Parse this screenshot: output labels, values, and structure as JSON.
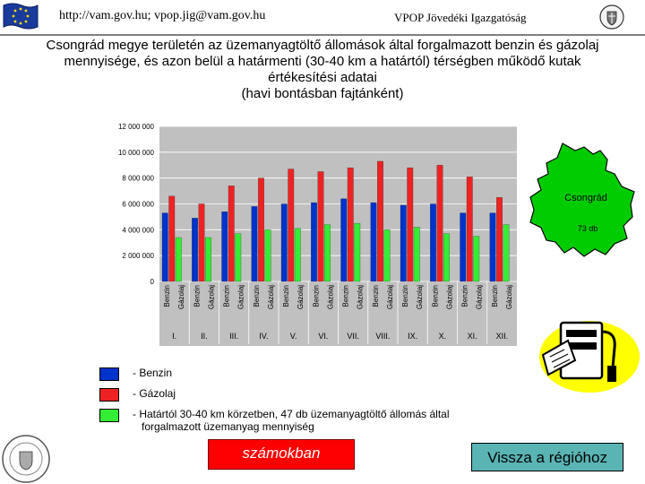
{
  "header": {
    "url_text": "http://vam.gov.hu; vpop.jig@vam.gov.hu",
    "org_text": "VPOP Jövedéki Igazgatóság",
    "left_logo_icon": "eu-flag-icon",
    "right_logo_icon": "crest-icon"
  },
  "title": {
    "line1": "Csongrád megye területén az üzemanyagtöltő állomások által forgalmazott benzin és gázolaj",
    "line2": "mennyisége, és azon belül a határmenti (30-40 km a határtól) térségben működő kutak",
    "line3": "értékesítési adatai",
    "line4": "(havi bontásban fajtánként)"
  },
  "map": {
    "region_name": "Csongrád",
    "station_count": "73 db",
    "fill_color": "#00cc00"
  },
  "chart_data": {
    "type": "bar",
    "months": [
      "I.",
      "II.",
      "III.",
      "IV.",
      "V.",
      "VI.",
      "VII.",
      "VIII.",
      "IX.",
      "X.",
      "XI.",
      "XII."
    ],
    "fuel_labels": [
      "Benzin",
      "Gázolaj"
    ],
    "ylim": [
      0,
      12000000
    ],
    "yticks": [
      "0",
      "2 000 000",
      "4 000 000",
      "6 000 000",
      "8 000 000",
      "10 000 000",
      "12 000 000"
    ],
    "series": [
      {
        "name": "Benzin",
        "color": "#0033cc",
        "values": [
          5300000,
          4900000,
          5400000,
          5800000,
          6000000,
          6100000,
          6400000,
          6100000,
          5900000,
          6000000,
          5300000,
          5300000
        ]
      },
      {
        "name": "Gázolaj",
        "color": "#ee2222",
        "values": [
          6600000,
          6000000,
          7400000,
          8000000,
          8700000,
          8500000,
          8800000,
          9300000,
          8800000,
          9000000,
          8100000,
          6500000
        ]
      },
      {
        "name": "Határtól 30-40 km",
        "color": "#33ee33",
        "values": [
          3400000,
          3400000,
          3700000,
          4000000,
          4100000,
          4400000,
          4500000,
          4000000,
          4200000,
          3700000,
          3500000,
          4400000
        ]
      }
    ],
    "background_color": "#c0c0c0",
    "grid": true
  },
  "legend": [
    {
      "color": "#0033cc",
      "label": "- Benzin"
    },
    {
      "color": "#ee2222",
      "label": "- Gázolaj"
    },
    {
      "color": "#33ee33",
      "label": "- Határtól 30-40 km körzetben, 47 db üzemanyagtöltő állomás által",
      "label2": "forgalmazott üzemanyag mennyiség"
    }
  ],
  "buttons": {
    "numbers_label": "számokban",
    "back_label": "Vissza a régióhoz"
  },
  "icons": {
    "fuel_icon": "fuel-pump-icon",
    "stamp_icon": "stamp-icon"
  }
}
